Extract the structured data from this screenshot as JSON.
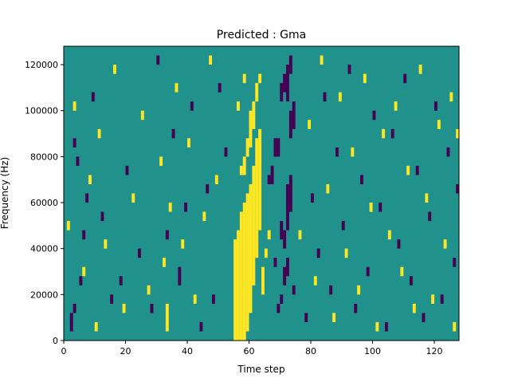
{
  "chart_data": {
    "type": "heatmap",
    "title": "Predicted : Gma",
    "xlabel": "Time step",
    "ylabel": "Frequency (Hz)",
    "xlim": [
      0,
      128
    ],
    "ylim": [
      0,
      128000
    ],
    "x_ticks": [
      0,
      20,
      40,
      60,
      80,
      100,
      120
    ],
    "x_tick_labels": [
      "0",
      "20",
      "40",
      "60",
      "80",
      "100",
      "120"
    ],
    "y_ticks": [
      0,
      20000,
      40000,
      60000,
      80000,
      100000,
      120000
    ],
    "y_tick_labels": [
      "0",
      "20000",
      "40000",
      "60000",
      "80000",
      "100000",
      "120000"
    ],
    "grid": false,
    "legend": "none",
    "rows": 64,
    "cols": 128,
    "colormap": "viridis",
    "value_colors": {
      "low": "#440154",
      "mid": "#21918c",
      "high": "#fde725"
    },
    "background_value": 0,
    "note_values": "cells: -1 = low (dark purple), 0 = mid (teal), 1 = high (yellow)",
    "cells": [
      {
        "x": 55,
        "y0": 0,
        "y1": 22,
        "v": 1
      },
      {
        "x": 56,
        "y0": 0,
        "y1": 24,
        "v": 1
      },
      {
        "x": 57,
        "y0": 0,
        "y1": 28,
        "v": 1
      },
      {
        "x": 58,
        "y0": 0,
        "y1": 30,
        "v": 1
      },
      {
        "x": 59,
        "y0": 2,
        "y1": 32,
        "v": 1
      },
      {
        "x": 60,
        "y0": 6,
        "y1": 34,
        "v": 1
      },
      {
        "x": 61,
        "y0": 12,
        "y1": 38,
        "v": 1
      },
      {
        "x": 62,
        "y0": 18,
        "y1": 44,
        "v": 1
      },
      {
        "x": 63,
        "y0": 24,
        "y1": 46,
        "v": 1
      },
      {
        "x": 57,
        "y0": 36,
        "y1": 38,
        "v": 1
      },
      {
        "x": 58,
        "y0": 36,
        "y1": 40,
        "v": 1
      },
      {
        "x": 59,
        "y0": 40,
        "y1": 44,
        "v": 1
      },
      {
        "x": 60,
        "y0": 42,
        "y1": 50,
        "v": 1
      },
      {
        "x": 61,
        "y0": 46,
        "y1": 52,
        "v": 1
      },
      {
        "x": 62,
        "y0": 52,
        "y1": 56,
        "v": 1
      },
      {
        "x": 63,
        "y0": 56,
        "y1": 58,
        "v": 1
      },
      {
        "x": 56,
        "y0": 50,
        "y1": 52,
        "v": 1
      },
      {
        "x": 58,
        "y0": 56,
        "y1": 58,
        "v": 1
      },
      {
        "x": 64,
        "y0": 10,
        "y1": 16,
        "v": 1
      },
      {
        "x": 65,
        "y0": 18,
        "y1": 20,
        "v": 1
      },
      {
        "x": 66,
        "y0": 22,
        "y1": 24,
        "v": 1
      },
      {
        "x": 68,
        "y0": 40,
        "y1": 44,
        "v": -1
      },
      {
        "x": 69,
        "y0": 40,
        "y1": 44,
        "v": -1
      },
      {
        "x": 66,
        "y0": 34,
        "y1": 36,
        "v": -1
      },
      {
        "x": 67,
        "y0": 34,
        "y1": 38,
        "v": -1
      },
      {
        "x": 70,
        "y0": 22,
        "y1": 26,
        "v": -1
      },
      {
        "x": 71,
        "y0": 20,
        "y1": 24,
        "v": -1
      },
      {
        "x": 72,
        "y0": 24,
        "y1": 34,
        "v": -1
      },
      {
        "x": 73,
        "y0": 28,
        "y1": 36,
        "v": -1
      },
      {
        "x": 71,
        "y0": 12,
        "y1": 16,
        "v": -1
      },
      {
        "x": 72,
        "y0": 14,
        "y1": 18,
        "v": -1
      },
      {
        "x": 73,
        "y0": 44,
        "y1": 50,
        "v": -1
      },
      {
        "x": 74,
        "y0": 46,
        "y1": 52,
        "v": -1
      },
      {
        "x": 70,
        "y0": 52,
        "y1": 56,
        "v": -1
      },
      {
        "x": 71,
        "y0": 54,
        "y1": 58,
        "v": -1
      },
      {
        "x": 69,
        "y0": 6,
        "y1": 8,
        "v": -1
      },
      {
        "x": 68,
        "y0": 16,
        "y1": 18,
        "v": -1
      },
      {
        "x": 70,
        "y0": 8,
        "y1": 10,
        "v": -1
      },
      {
        "x": 74,
        "y0": 10,
        "y1": 12,
        "v": -1
      },
      {
        "x": 72,
        "y0": 52,
        "y1": 60,
        "v": -1
      },
      {
        "x": 73,
        "y0": 58,
        "y1": 62,
        "v": -1
      },
      {
        "x": 2,
        "y0": 2,
        "y1": 6,
        "v": -1
      },
      {
        "x": 3,
        "y0": 6,
        "y1": 8,
        "v": -1
      },
      {
        "x": 4,
        "y0": 38,
        "y1": 40,
        "v": -1
      },
      {
        "x": 5,
        "y0": 12,
        "y1": 14,
        "v": -1
      },
      {
        "x": 6,
        "y0": 22,
        "y1": 24,
        "v": -1
      },
      {
        "x": 7,
        "y0": 30,
        "y1": 32,
        "v": -1
      },
      {
        "x": 3,
        "y0": 42,
        "y1": 44,
        "v": -1
      },
      {
        "x": 9,
        "y0": 52,
        "y1": 54,
        "v": -1
      },
      {
        "x": 12,
        "y0": 26,
        "y1": 28,
        "v": -1
      },
      {
        "x": 15,
        "y0": 8,
        "y1": 10,
        "v": -1
      },
      {
        "x": 18,
        "y0": 12,
        "y1": 14,
        "v": -1
      },
      {
        "x": 20,
        "y0": 36,
        "y1": 38,
        "v": -1
      },
      {
        "x": 24,
        "y0": 18,
        "y1": 20,
        "v": -1
      },
      {
        "x": 28,
        "y0": 6,
        "y1": 8,
        "v": -1
      },
      {
        "x": 30,
        "y0": 60,
        "y1": 62,
        "v": -1
      },
      {
        "x": 33,
        "y0": 22,
        "y1": 24,
        "v": -1
      },
      {
        "x": 35,
        "y0": 44,
        "y1": 46,
        "v": -1
      },
      {
        "x": 37,
        "y0": 12,
        "y1": 16,
        "v": -1
      },
      {
        "x": 39,
        "y0": 28,
        "y1": 30,
        "v": -1
      },
      {
        "x": 41,
        "y0": 50,
        "y1": 52,
        "v": -1
      },
      {
        "x": 44,
        "y0": 2,
        "y1": 4,
        "v": -1
      },
      {
        "x": 46,
        "y0": 32,
        "y1": 34,
        "v": -1
      },
      {
        "x": 48,
        "y0": 8,
        "y1": 10,
        "v": -1
      },
      {
        "x": 50,
        "y0": 54,
        "y1": 56,
        "v": -1
      },
      {
        "x": 52,
        "y0": 40,
        "y1": 42,
        "v": -1
      },
      {
        "x": 78,
        "y0": 4,
        "y1": 6,
        "v": -1
      },
      {
        "x": 80,
        "y0": 30,
        "y1": 32,
        "v": -1
      },
      {
        "x": 82,
        "y0": 18,
        "y1": 20,
        "v": -1
      },
      {
        "x": 84,
        "y0": 52,
        "y1": 54,
        "v": -1
      },
      {
        "x": 86,
        "y0": 10,
        "y1": 12,
        "v": -1
      },
      {
        "x": 88,
        "y0": 40,
        "y1": 42,
        "v": -1
      },
      {
        "x": 90,
        "y0": 24,
        "y1": 26,
        "v": -1
      },
      {
        "x": 92,
        "y0": 58,
        "y1": 60,
        "v": -1
      },
      {
        "x": 94,
        "y0": 6,
        "y1": 8,
        "v": -1
      },
      {
        "x": 96,
        "y0": 34,
        "y1": 36,
        "v": -1
      },
      {
        "x": 98,
        "y0": 14,
        "y1": 16,
        "v": -1
      },
      {
        "x": 100,
        "y0": 48,
        "y1": 50,
        "v": -1
      },
      {
        "x": 102,
        "y0": 28,
        "y1": 30,
        "v": -1
      },
      {
        "x": 104,
        "y0": 2,
        "y1": 4,
        "v": -1
      },
      {
        "x": 106,
        "y0": 44,
        "y1": 46,
        "v": -1
      },
      {
        "x": 108,
        "y0": 20,
        "y1": 22,
        "v": -1
      },
      {
        "x": 110,
        "y0": 56,
        "y1": 58,
        "v": -1
      },
      {
        "x": 112,
        "y0": 12,
        "y1": 14,
        "v": -1
      },
      {
        "x": 114,
        "y0": 36,
        "y1": 38,
        "v": -1
      },
      {
        "x": 116,
        "y0": 4,
        "y1": 6,
        "v": -1
      },
      {
        "x": 118,
        "y0": 26,
        "y1": 28,
        "v": -1
      },
      {
        "x": 120,
        "y0": 50,
        "y1": 52,
        "v": -1
      },
      {
        "x": 122,
        "y0": 8,
        "y1": 10,
        "v": -1
      },
      {
        "x": 124,
        "y0": 40,
        "y1": 42,
        "v": -1
      },
      {
        "x": 126,
        "y0": 16,
        "y1": 18,
        "v": -1
      },
      {
        "x": 127,
        "y0": 32,
        "y1": 34,
        "v": -1
      },
      {
        "x": 1,
        "y0": 24,
        "y1": 26,
        "v": 1
      },
      {
        "x": 3,
        "y0": 50,
        "y1": 52,
        "v": 1
      },
      {
        "x": 6,
        "y0": 14,
        "y1": 16,
        "v": 1
      },
      {
        "x": 8,
        "y0": 34,
        "y1": 36,
        "v": 1
      },
      {
        "x": 10,
        "y0": 2,
        "y1": 4,
        "v": 1
      },
      {
        "x": 11,
        "y0": 44,
        "y1": 46,
        "v": 1
      },
      {
        "x": 13,
        "y0": 20,
        "y1": 22,
        "v": 1
      },
      {
        "x": 16,
        "y0": 58,
        "y1": 60,
        "v": 1
      },
      {
        "x": 19,
        "y0": 6,
        "y1": 8,
        "v": 1
      },
      {
        "x": 22,
        "y0": 30,
        "y1": 32,
        "v": 1
      },
      {
        "x": 25,
        "y0": 48,
        "y1": 50,
        "v": 1
      },
      {
        "x": 27,
        "y0": 10,
        "y1": 12,
        "v": 1
      },
      {
        "x": 31,
        "y0": 38,
        "y1": 40,
        "v": 1
      },
      {
        "x": 32,
        "y0": 16,
        "y1": 18,
        "v": 1
      },
      {
        "x": 33,
        "y0": 2,
        "y1": 8,
        "v": 1
      },
      {
        "x": 34,
        "y0": 28,
        "y1": 30,
        "v": 1
      },
      {
        "x": 36,
        "y0": 54,
        "y1": 56,
        "v": 1
      },
      {
        "x": 38,
        "y0": 20,
        "y1": 22,
        "v": 1
      },
      {
        "x": 40,
        "y0": 42,
        "y1": 44,
        "v": 1
      },
      {
        "x": 42,
        "y0": 8,
        "y1": 10,
        "v": 1
      },
      {
        "x": 45,
        "y0": 26,
        "y1": 28,
        "v": 1
      },
      {
        "x": 47,
        "y0": 60,
        "y1": 62,
        "v": 1
      },
      {
        "x": 49,
        "y0": 34,
        "y1": 36,
        "v": 1
      },
      {
        "x": 76,
        "y0": 22,
        "y1": 24,
        "v": 1
      },
      {
        "x": 79,
        "y0": 46,
        "y1": 48,
        "v": 1
      },
      {
        "x": 81,
        "y0": 12,
        "y1": 14,
        "v": 1
      },
      {
        "x": 83,
        "y0": 60,
        "y1": 62,
        "v": 1
      },
      {
        "x": 85,
        "y0": 32,
        "y1": 34,
        "v": 1
      },
      {
        "x": 87,
        "y0": 4,
        "y1": 6,
        "v": 1
      },
      {
        "x": 89,
        "y0": 52,
        "y1": 54,
        "v": 1
      },
      {
        "x": 91,
        "y0": 18,
        "y1": 20,
        "v": 1
      },
      {
        "x": 93,
        "y0": 40,
        "y1": 42,
        "v": 1
      },
      {
        "x": 95,
        "y0": 10,
        "y1": 12,
        "v": 1
      },
      {
        "x": 97,
        "y0": 56,
        "y1": 58,
        "v": 1
      },
      {
        "x": 99,
        "y0": 28,
        "y1": 30,
        "v": 1
      },
      {
        "x": 101,
        "y0": 2,
        "y1": 4,
        "v": 1
      },
      {
        "x": 103,
        "y0": 44,
        "y1": 46,
        "v": 1
      },
      {
        "x": 105,
        "y0": 22,
        "y1": 24,
        "v": 1
      },
      {
        "x": 107,
        "y0": 50,
        "y1": 52,
        "v": 1
      },
      {
        "x": 109,
        "y0": 14,
        "y1": 16,
        "v": 1
      },
      {
        "x": 111,
        "y0": 36,
        "y1": 38,
        "v": 1
      },
      {
        "x": 113,
        "y0": 6,
        "y1": 8,
        "v": 1
      },
      {
        "x": 115,
        "y0": 58,
        "y1": 60,
        "v": 1
      },
      {
        "x": 117,
        "y0": 30,
        "y1": 32,
        "v": 1
      },
      {
        "x": 119,
        "y0": 8,
        "y1": 10,
        "v": 1
      },
      {
        "x": 121,
        "y0": 46,
        "y1": 48,
        "v": 1
      },
      {
        "x": 123,
        "y0": 20,
        "y1": 22,
        "v": 1
      },
      {
        "x": 125,
        "y0": 52,
        "y1": 54,
        "v": 1
      },
      {
        "x": 126,
        "y0": 2,
        "y1": 4,
        "v": 1
      },
      {
        "x": 127,
        "y0": 44,
        "y1": 46,
        "v": 1
      }
    ]
  }
}
